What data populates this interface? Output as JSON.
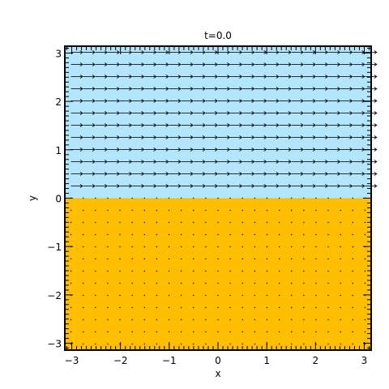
{
  "chart_data": {
    "type": "quiver",
    "title": "t=0.0",
    "xlabel": "x",
    "ylabel": "y",
    "xlim": [
      -3.1416,
      3.1416
    ],
    "ylim": [
      -3.1416,
      3.1416
    ],
    "xticks": [
      -3,
      -2,
      -1,
      0,
      1,
      2,
      3
    ],
    "yticks": [
      -3,
      -2,
      -1,
      0,
      1,
      2,
      3
    ],
    "xtick_labels": [
      "−3",
      "−2",
      "−1",
      "0",
      "1",
      "2",
      "3"
    ],
    "ytick_labels": [
      "−3",
      "−2",
      "−1",
      "0",
      "1",
      "2",
      "3"
    ],
    "regions": [
      {
        "y_range": [
          0,
          3.1416
        ],
        "color": "#b3e5fc"
      },
      {
        "y_range": [
          -3.1416,
          0
        ],
        "color": "#ffbf00"
      }
    ],
    "vector_field": {
      "grid_nx": 25,
      "grid_ny": 25,
      "upper_u": 1.0,
      "upper_v": 0.0,
      "lower_u": 0.0,
      "lower_v": 0.0,
      "arrow_color": "#000000"
    }
  }
}
